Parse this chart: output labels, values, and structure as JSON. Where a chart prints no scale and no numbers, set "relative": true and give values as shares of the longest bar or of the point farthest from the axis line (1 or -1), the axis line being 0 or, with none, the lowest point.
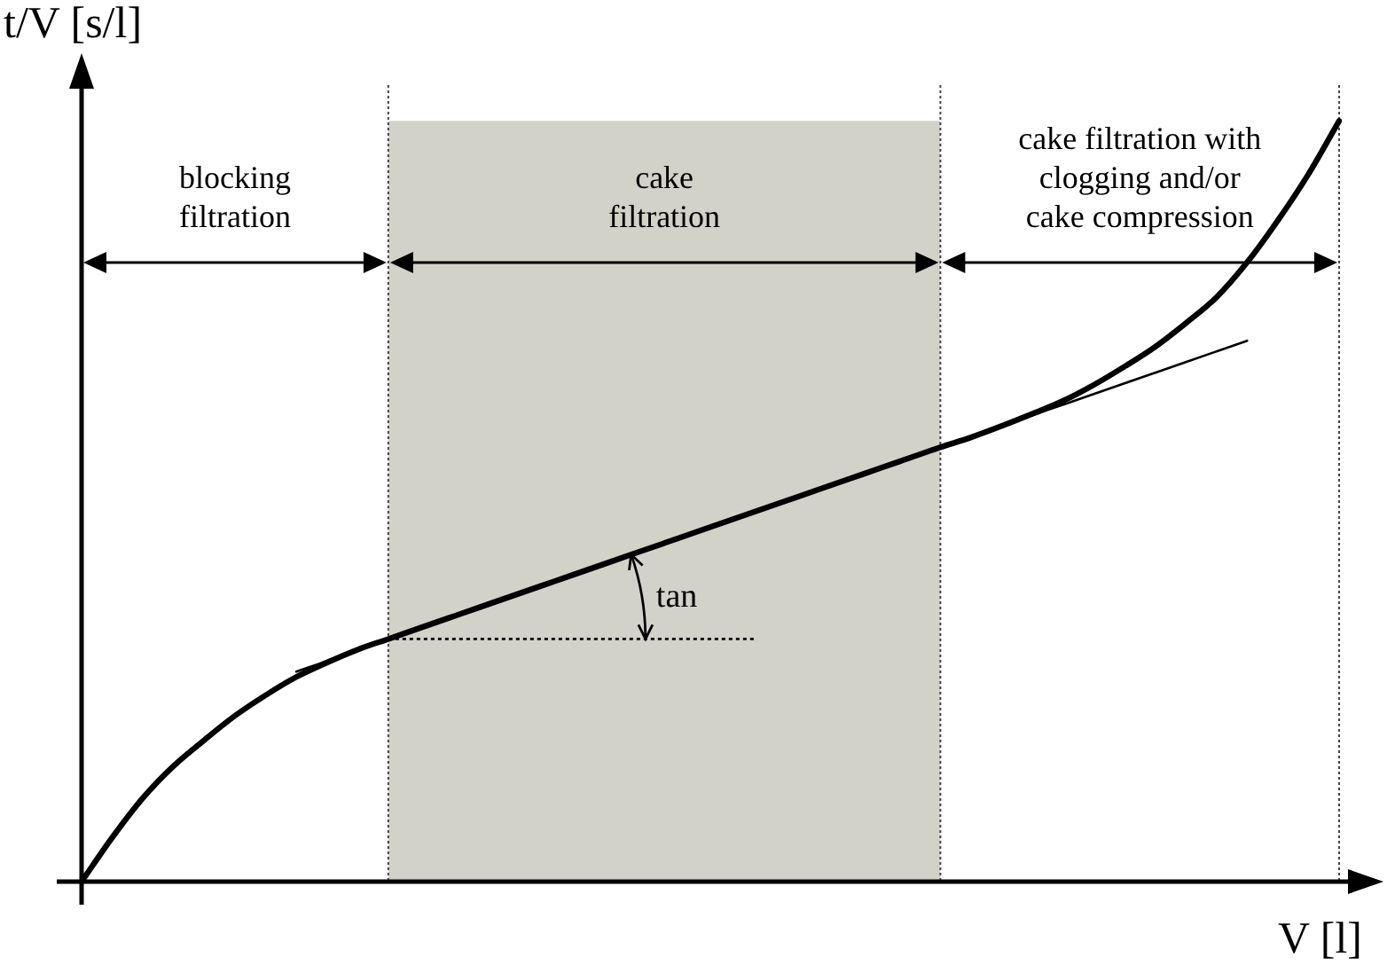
{
  "chart_data": {
    "type": "line",
    "relative": true,
    "xlabel": "V [l]",
    "ylabel": "t/V [s/l]",
    "marker": "none",
    "tick_labels": false,
    "grid": "x",
    "categories": [
      null,
      null,
      null,
      null,
      null,
      null,
      null,
      null,
      null,
      null,
      null,
      null,
      null,
      null,
      null,
      null,
      null,
      null,
      null,
      null,
      null,
      null,
      null,
      null,
      null,
      null,
      null,
      null,
      null,
      null,
      null,
      null,
      null,
      null,
      null,
      null,
      null,
      null,
      null,
      null,
      null,
      null
    ],
    "series": [
      {
        "color": "#000000",
        "values": [
          0,
          0.058,
          0.11,
          0.152,
          0.186,
          0.218,
          0.245,
          0.269,
          0.288,
          0.305,
          0.319,
          0.333,
          0.347,
          0.361,
          0.375,
          0.389,
          0.403,
          0.417,
          0.431,
          0.445,
          0.459,
          0.473,
          0.487,
          0.501,
          0.515,
          0.529,
          0.543,
          0.557,
          0.571,
          0.584,
          0.599,
          0.615,
          0.632,
          0.653,
          0.677,
          0.703,
          0.734,
          0.768,
          0.814,
          0.869,
          0.93,
          1
        ]
      },
      {
        "color": "#000000",
        "values": [
          null,
          null,
          null,
          null,
          null,
          null,
          null,
          0.276,
          0.29,
          0.305,
          0.319,
          null,
          null,
          null,
          null,
          null,
          null,
          null,
          null,
          null,
          null,
          null,
          null,
          null,
          null,
          null,
          null,
          null,
          0.571,
          0.585,
          0.599,
          0.613,
          0.627,
          0.641,
          0.655,
          0.669,
          0.683,
          0.697,
          0.711,
          null,
          null,
          null
        ]
      },
      {
        "color": "#000000",
        "line_style": "dotted",
        "values": [
          null,
          null,
          null,
          null,
          null,
          null,
          null,
          null,
          null,
          null,
          0.319,
          0.319,
          0.319,
          0.319,
          0.319,
          0.319,
          0.319,
          0.319,
          0.319,
          0.319,
          0.319,
          0.319,
          0.319,
          null,
          null,
          null,
          null,
          null,
          null,
          null,
          null,
          null,
          null,
          null,
          null,
          null,
          null,
          null,
          null,
          null,
          null,
          null
        ]
      }
    ],
    "annotations": [
      "blocking\nfiltration",
      "cake\nfiltration",
      "cake filtration with\nclogging and/or\ncake compression",
      "tan"
    ]
  }
}
